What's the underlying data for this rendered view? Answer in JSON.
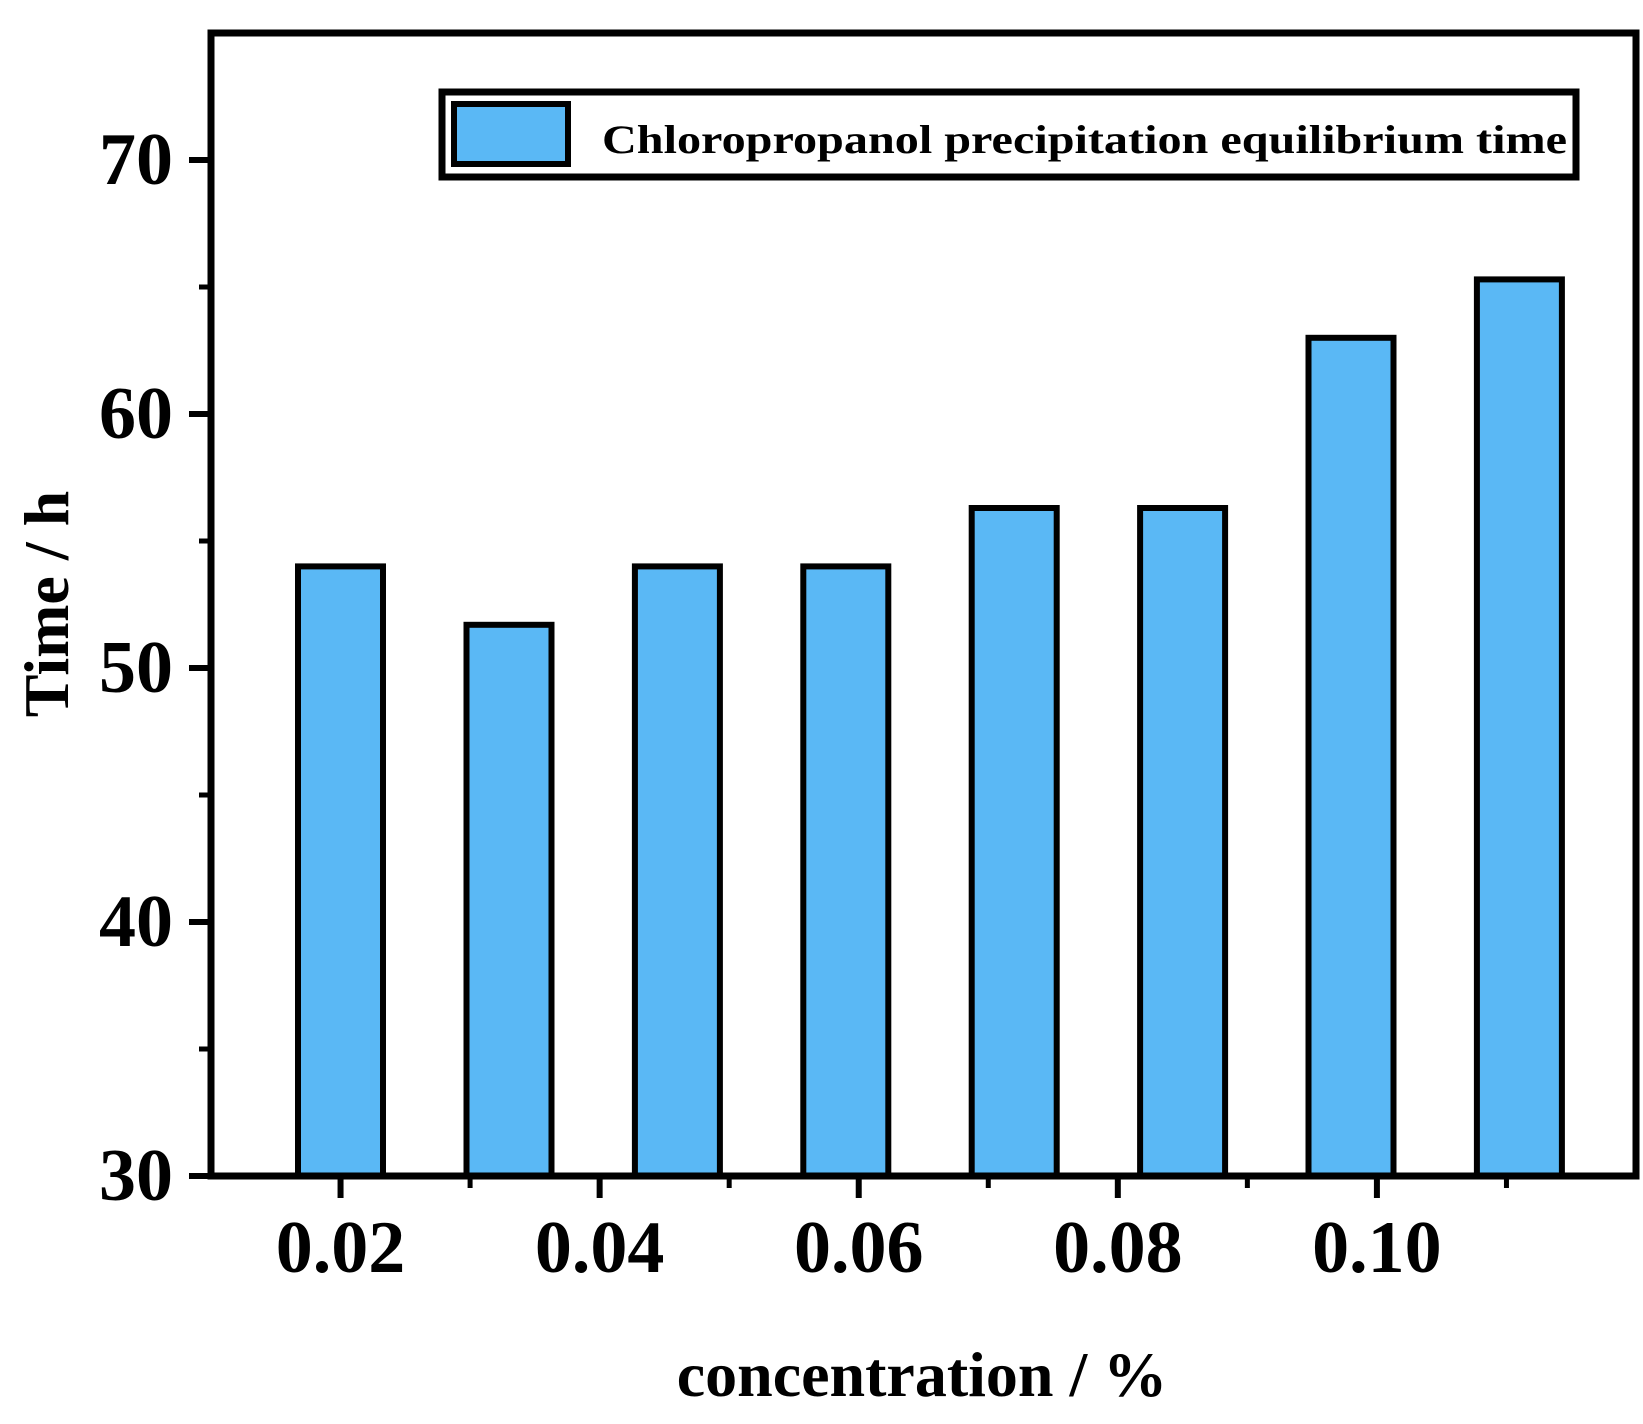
{
  "chart_data": {
    "type": "bar",
    "title": "",
    "xlabel": "concentration / %",
    "ylabel": "Time / h",
    "ylim": [
      30,
      75
    ],
    "xlim": [
      0.01,
      0.12
    ],
    "y_ticks": [
      30,
      40,
      50,
      60,
      70
    ],
    "x_ticks": [
      0.02,
      0.04,
      0.06,
      0.08,
      0.1
    ],
    "y_tick_labels": [
      "30",
      "40",
      "50",
      "60",
      "70"
    ],
    "x_tick_labels": [
      "0.02",
      "0.04",
      "0.06",
      "0.08",
      "0.10"
    ],
    "series": [
      {
        "name": "Chloropropanol precipitation equilibrium time",
        "color": "#5ab8f5",
        "x": [
          0.02,
          0.033,
          0.046,
          0.059,
          0.072,
          0.085,
          0.098,
          0.111
        ],
        "values": [
          54,
          51.7,
          54,
          54,
          56.3,
          56.3,
          63,
          65.3
        ]
      }
    ],
    "legend_position": "top-right",
    "grid": false
  }
}
